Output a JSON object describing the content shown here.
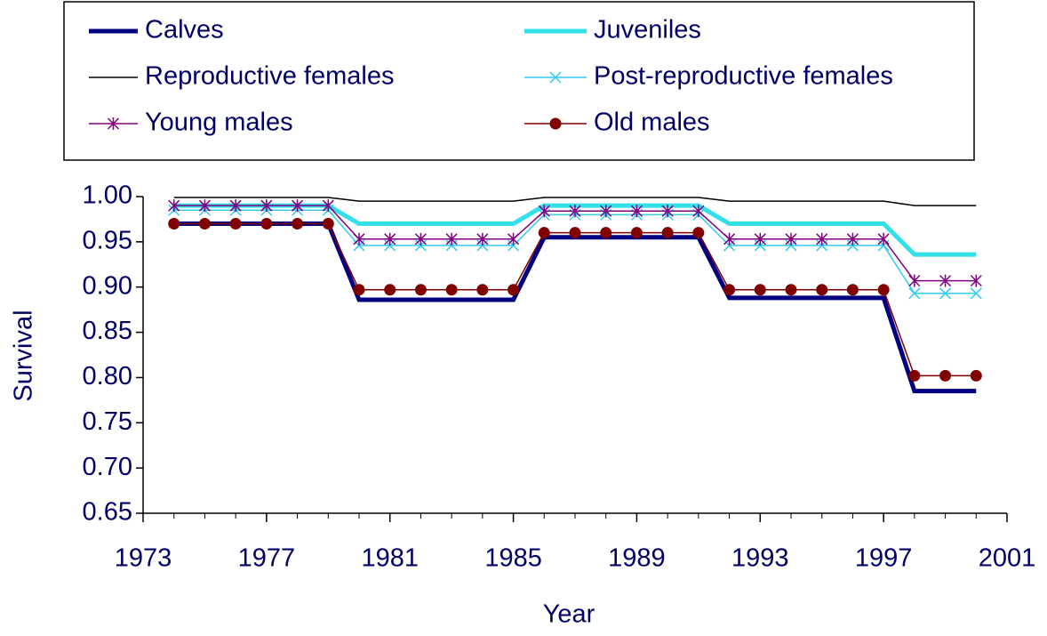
{
  "chart_data": {
    "type": "line",
    "x": [
      1974,
      1975,
      1976,
      1977,
      1978,
      1979,
      1980,
      1981,
      1982,
      1983,
      1984,
      1985,
      1986,
      1987,
      1988,
      1989,
      1990,
      1991,
      1992,
      1993,
      1994,
      1995,
      1996,
      1997,
      1998,
      1999,
      2000
    ],
    "series": [
      {
        "name": "Calves",
        "color": "#000080",
        "values": [
          0.97,
          0.97,
          0.97,
          0.97,
          0.97,
          0.97,
          0.886,
          0.886,
          0.886,
          0.886,
          0.886,
          0.886,
          0.955,
          0.955,
          0.955,
          0.955,
          0.955,
          0.955,
          0.888,
          0.888,
          0.888,
          0.888,
          0.888,
          0.888,
          0.785,
          0.785,
          0.785
        ]
      },
      {
        "name": "Juveniles",
        "color": "#33e0e8",
        "values": [
          0.99,
          0.99,
          0.99,
          0.99,
          0.99,
          0.99,
          0.97,
          0.97,
          0.97,
          0.97,
          0.97,
          0.97,
          0.99,
          0.99,
          0.99,
          0.99,
          0.99,
          0.99,
          0.97,
          0.97,
          0.97,
          0.97,
          0.97,
          0.97,
          0.936,
          0.936,
          0.936
        ]
      },
      {
        "name": "Reproductive females",
        "color": "#000000",
        "values": [
          0.999,
          0.999,
          0.999,
          0.999,
          0.999,
          0.999,
          0.995,
          0.995,
          0.995,
          0.995,
          0.995,
          0.995,
          0.999,
          0.999,
          0.999,
          0.999,
          0.999,
          0.999,
          0.995,
          0.995,
          0.995,
          0.995,
          0.995,
          0.995,
          0.99,
          0.99,
          0.99
        ]
      },
      {
        "name": "Post-reproductive females",
        "color": "#33ccf0",
        "marker": "x",
        "values": [
          0.985,
          0.985,
          0.985,
          0.985,
          0.985,
          0.985,
          0.946,
          0.946,
          0.946,
          0.946,
          0.946,
          0.946,
          0.98,
          0.98,
          0.98,
          0.98,
          0.98,
          0.98,
          0.946,
          0.946,
          0.946,
          0.946,
          0.946,
          0.946,
          0.893,
          0.893,
          0.893
        ]
      },
      {
        "name": "Young males",
        "color": "#800080",
        "marker": "star",
        "values": [
          0.99,
          0.99,
          0.99,
          0.99,
          0.99,
          0.99,
          0.953,
          0.953,
          0.953,
          0.953,
          0.953,
          0.953,
          0.984,
          0.984,
          0.984,
          0.984,
          0.984,
          0.984,
          0.953,
          0.953,
          0.953,
          0.953,
          0.953,
          0.953,
          0.907,
          0.907,
          0.907
        ]
      },
      {
        "name": "Old males",
        "color": "#800000",
        "marker": "circle",
        "values": [
          0.97,
          0.97,
          0.97,
          0.97,
          0.97,
          0.97,
          0.897,
          0.897,
          0.897,
          0.897,
          0.897,
          0.897,
          0.96,
          0.96,
          0.96,
          0.96,
          0.96,
          0.96,
          0.897,
          0.897,
          0.897,
          0.897,
          0.897,
          0.897,
          0.802,
          0.802,
          0.802
        ]
      }
    ],
    "xlabel": "Year",
    "ylabel": "Survival",
    "xlim": [
      1973,
      2001
    ],
    "xticks": [
      1973,
      1977,
      1981,
      1985,
      1989,
      1993,
      1997,
      2001
    ],
    "ylim": [
      0.65,
      1.0
    ],
    "yticks": [
      {
        "value": 0.65,
        "label": "0.65"
      },
      {
        "value": 0.7,
        "label": "0.70"
      },
      {
        "value": 0.75,
        "label": "0.75"
      },
      {
        "value": 0.8,
        "label": "0.80"
      },
      {
        "value": 0.85,
        "label": "0.85"
      },
      {
        "value": 0.9,
        "label": "0.90"
      },
      {
        "value": 0.95,
        "label": "0.95"
      },
      {
        "value": 1.0,
        "label": "1.00"
      }
    ],
    "grid": false,
    "legend": "top"
  }
}
